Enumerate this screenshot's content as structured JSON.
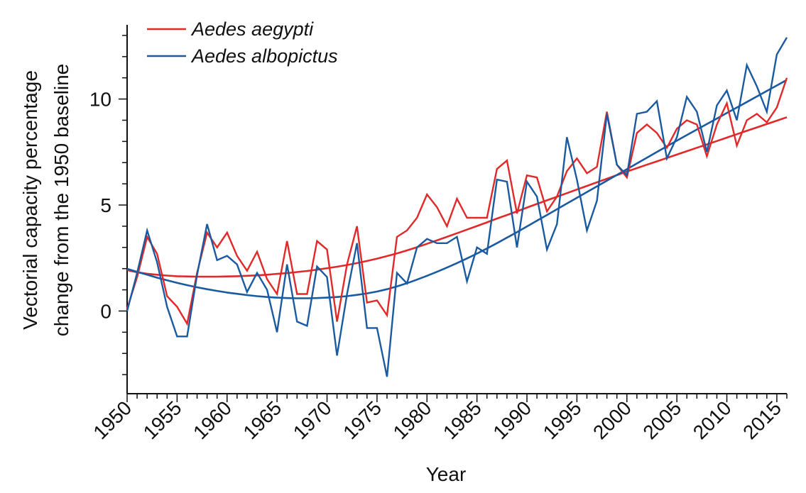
{
  "chart_data": {
    "type": "line",
    "xlabel": "Year",
    "ylabel_lines": [
      "Vectorial capacity percentage",
      "change from the 1950 baseline"
    ],
    "xlim": [
      1950,
      2016
    ],
    "ylim": [
      -3.9,
      13.5
    ],
    "x_ticks": [
      "1950",
      "1955",
      "1960",
      "1965",
      "1970",
      "1975",
      "1980",
      "1985",
      "1990",
      "1995",
      "2000",
      "2005",
      "2010",
      "2015"
    ],
    "y_ticks": [
      "0",
      "5",
      "10"
    ],
    "legend_position": "top-left",
    "x": [
      1950,
      1951,
      1952,
      1953,
      1954,
      1955,
      1956,
      1957,
      1958,
      1959,
      1960,
      1961,
      1962,
      1963,
      1964,
      1965,
      1966,
      1967,
      1968,
      1969,
      1970,
      1971,
      1972,
      1973,
      1974,
      1975,
      1976,
      1977,
      1978,
      1979,
      1980,
      1981,
      1982,
      1983,
      1984,
      1985,
      1986,
      1987,
      1988,
      1989,
      1990,
      1991,
      1992,
      1993,
      1994,
      1995,
      1996,
      1997,
      1998,
      1999,
      2000,
      2001,
      2002,
      2003,
      2004,
      2005,
      2006,
      2007,
      2008,
      2009,
      2010,
      2011,
      2012,
      2013,
      2014,
      2015,
      2016
    ],
    "series": [
      {
        "name": "Aedes aegypti",
        "color": "#e1292a",
        "values": [
          0.1,
          1.6,
          3.5,
          2.7,
          0.7,
          0.2,
          -0.6,
          1.8,
          3.7,
          3.0,
          3.7,
          2.6,
          1.9,
          2.8,
          1.5,
          0.8,
          3.3,
          0.8,
          0.8,
          3.3,
          2.9,
          -0.5,
          2.2,
          4.0,
          0.4,
          0.5,
          -0.2,
          3.5,
          3.8,
          4.4,
          5.5,
          4.9,
          4.0,
          5.3,
          4.4,
          4.4,
          4.4,
          6.7,
          7.1,
          4.6,
          6.4,
          6.3,
          4.7,
          5.4,
          6.6,
          7.2,
          6.5,
          6.8,
          9.4,
          6.9,
          6.3,
          8.4,
          8.8,
          8.4,
          7.7,
          8.6,
          9.0,
          8.8,
          7.3,
          8.8,
          9.8,
          7.8,
          9.0,
          9.3,
          8.9,
          9.6,
          11.0
        ],
        "trend": [
          1.93,
          1.83,
          1.76,
          1.71,
          1.67,
          1.64,
          1.63,
          1.62,
          1.62,
          1.62,
          1.63,
          1.64,
          1.66,
          1.68,
          1.71,
          1.75,
          1.79,
          1.84,
          1.89,
          1.95,
          2.02,
          2.09,
          2.17,
          2.26,
          2.36,
          2.47,
          2.59,
          2.72,
          2.86,
          3.01,
          3.17,
          3.33,
          3.5,
          3.67,
          3.84,
          4.01,
          4.18,
          4.36,
          4.53,
          4.7,
          4.88,
          5.05,
          5.22,
          5.39,
          5.56,
          5.73,
          5.9,
          6.07,
          6.24,
          6.41,
          6.58,
          6.74,
          6.9,
          7.06,
          7.22,
          7.38,
          7.54,
          7.7,
          7.86,
          8.02,
          8.18,
          8.34,
          8.5,
          8.66,
          8.82,
          8.98,
          9.14
        ]
      },
      {
        "name": "Aedes albopictus",
        "color": "#1a5aa0",
        "values": [
          0.0,
          1.8,
          3.8,
          2.3,
          0.2,
          -1.2,
          -1.2,
          1.7,
          4.1,
          2.4,
          2.6,
          2.2,
          0.9,
          1.8,
          1.0,
          -1.0,
          2.2,
          -0.5,
          -0.7,
          2.1,
          1.6,
          -2.1,
          0.8,
          3.2,
          -0.8,
          -0.8,
          -3.1,
          1.8,
          1.3,
          3.0,
          3.4,
          3.2,
          3.2,
          3.5,
          1.4,
          3.0,
          2.7,
          6.2,
          6.1,
          3.0,
          6.1,
          5.4,
          2.9,
          4.1,
          8.2,
          6.2,
          3.8,
          5.2,
          9.3,
          6.9,
          6.4,
          9.3,
          9.4,
          9.9,
          7.2,
          8.2,
          10.1,
          9.4,
          7.5,
          9.7,
          10.4,
          9.0,
          11.6,
          10.6,
          9.4,
          12.1,
          12.9
        ],
        "trend": [
          1.99,
          1.85,
          1.71,
          1.57,
          1.45,
          1.33,
          1.22,
          1.12,
          1.03,
          0.95,
          0.87,
          0.81,
          0.75,
          0.7,
          0.66,
          0.63,
          0.61,
          0.6,
          0.6,
          0.61,
          0.63,
          0.66,
          0.7,
          0.76,
          0.83,
          0.92,
          1.03,
          1.16,
          1.31,
          1.48,
          1.66,
          1.85,
          2.05,
          2.26,
          2.48,
          2.71,
          2.95,
          3.2,
          3.46,
          3.72,
          3.99,
          4.26,
          4.53,
          4.8,
          5.07,
          5.34,
          5.61,
          5.88,
          6.15,
          6.42,
          6.69,
          6.96,
          7.23,
          7.5,
          7.77,
          8.04,
          8.3,
          8.56,
          8.82,
          9.08,
          9.34,
          9.6,
          9.86,
          10.12,
          10.38,
          10.64,
          10.9
        ]
      }
    ]
  }
}
